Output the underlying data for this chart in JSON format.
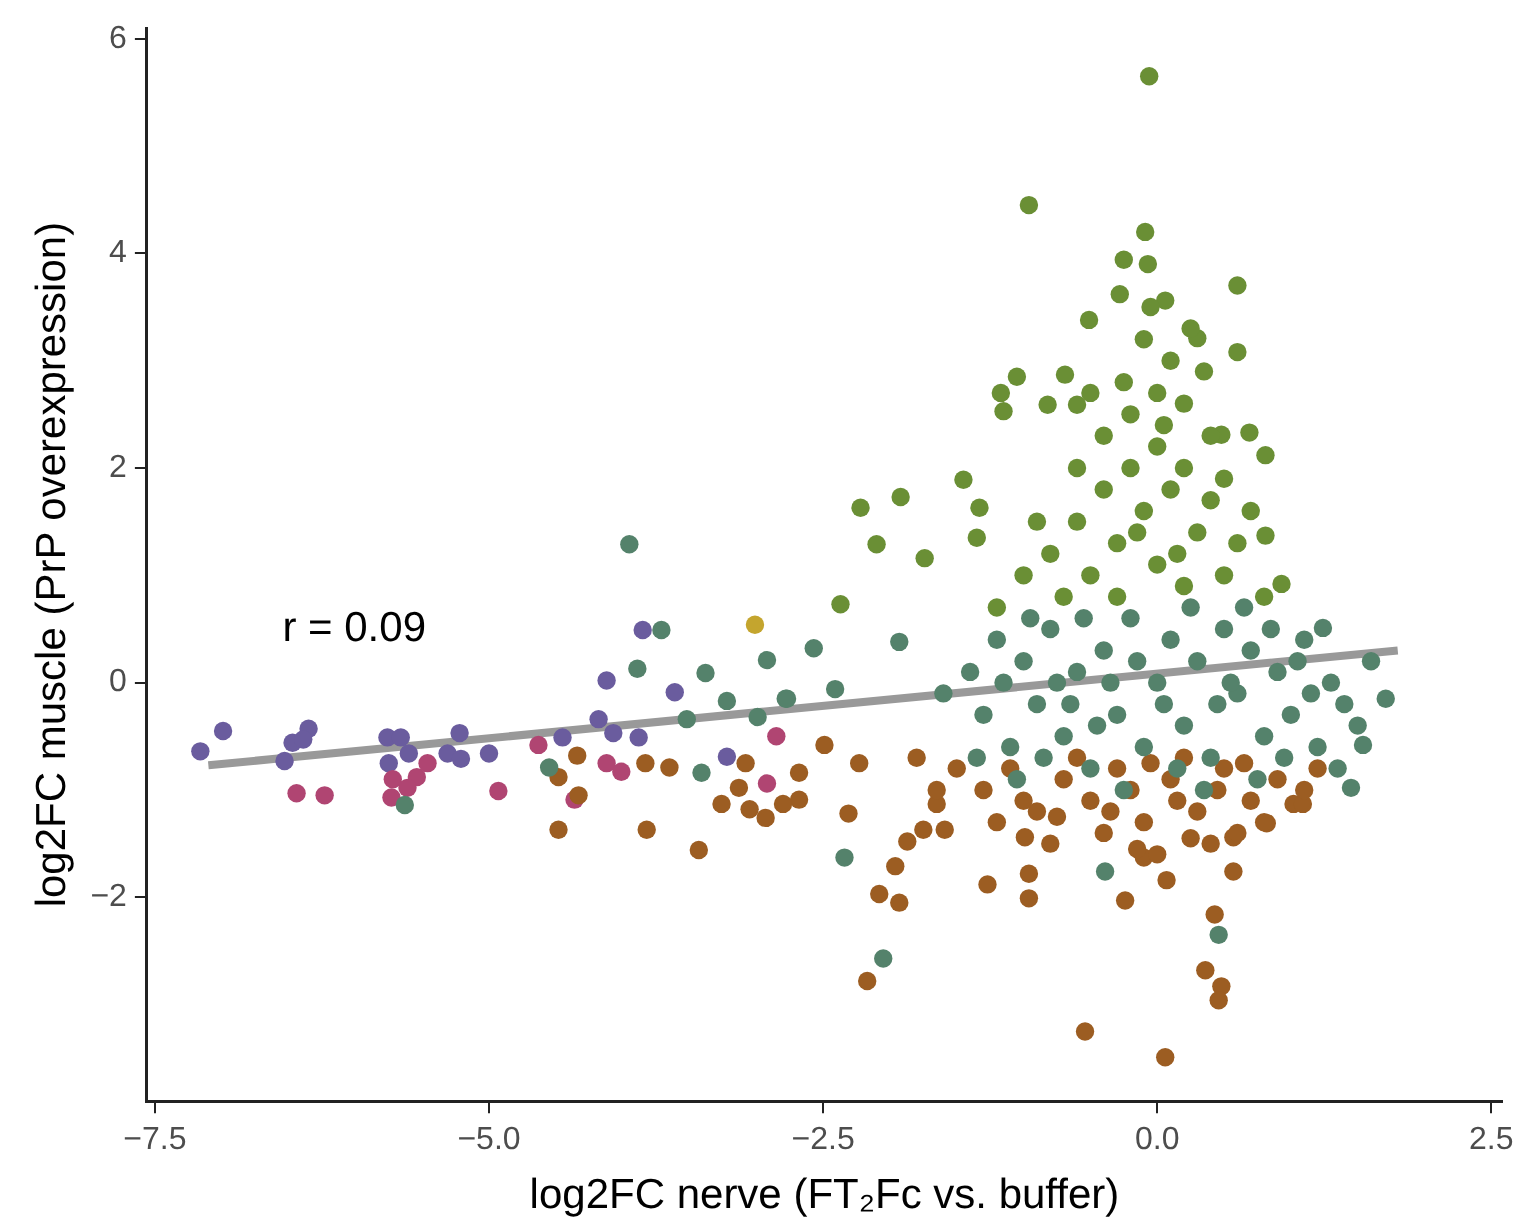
{
  "chart_data": {
    "type": "scatter",
    "xlabel": "log2FC nerve (FT₂Fc vs. buffer)",
    "ylabel": "log2FC muscle (PrP overexpression)",
    "annotations": [
      "r = 0.09"
    ],
    "xlim": [
      -7.56,
      2.58
    ],
    "ylim": [
      -3.9,
      6.1
    ],
    "xticks": [
      {
        "value": -7.5,
        "label": "−7.5"
      },
      {
        "value": -5,
        "label": "−5.0"
      },
      {
        "value": -2.5,
        "label": "−2.5"
      },
      {
        "value": 0,
        "label": "0.0"
      },
      {
        "value": 2.5,
        "label": "2.5"
      }
    ],
    "yticks": [
      {
        "value": -2,
        "label": "−2"
      },
      0,
      2,
      4,
      6
    ],
    "grid": false,
    "legend": false,
    "marker": "circle",
    "series": [
      {
        "type": "line",
        "color": "#999999",
        "x": [
          -7.1,
          1.8
        ],
        "values": [
          -0.77,
          0.3
        ],
        "marker": "none",
        "line_style": "solid"
      },
      {
        "color": "#6a8f35",
        "x": [
          -0.06,
          -0.96,
          -0.09,
          -0.07,
          -0.25,
          0.6,
          -0.28,
          0.06,
          -0.51,
          0.3,
          0.6,
          -1.05,
          -0.69,
          -1.17,
          -1.15,
          -0.82,
          -0.6,
          -1.45,
          -1.92,
          -2.22,
          -2.1,
          -1.74,
          -2.37,
          0.69,
          0.81,
          0.81,
          0.93,
          0.48,
          -1.33,
          -1.35,
          -0.8,
          -0.6,
          -0.4,
          -0.2,
          0,
          0.2,
          0.4,
          0.6,
          -0.5,
          -0.3,
          -0.1,
          0.1,
          0.3,
          0.5,
          -0.7,
          -0.2,
          0,
          0.1,
          -0.1,
          0.2,
          -0.4,
          0.4,
          -0.6,
          0.5,
          -1,
          -0.9,
          0.7,
          -0.3,
          0.2,
          0,
          -0.15,
          0.15,
          -1.2,
          0.8,
          -0.5,
          0.35,
          -0.05,
          0.05,
          -0.25,
          0.25
        ],
        "values": [
          5.65,
          4.45,
          4.2,
          3.9,
          3.94,
          3.7,
          3.62,
          3.56,
          3.38,
          3.21,
          3.08,
          2.85,
          2.87,
          2.7,
          2.53,
          2.59,
          2.59,
          1.89,
          1.73,
          1.63,
          1.29,
          1.16,
          0.73,
          2.33,
          2.12,
          1.37,
          0.92,
          2.31,
          1.63,
          1.35,
          1.2,
          1.5,
          1.8,
          2,
          2.2,
          2,
          1.7,
          1.3,
          1,
          1.3,
          1.6,
          1.8,
          1.4,
          1,
          0.8,
          2.5,
          2.7,
          3,
          3.2,
          2.6,
          2.3,
          2.3,
          2,
          1.9,
          1,
          1.5,
          1.6,
          0.8,
          0.9,
          1.1,
          1.4,
          1.2,
          0.7,
          0.8,
          2.7,
          2.9,
          3.5,
          2.4,
          2.8,
          3.3
        ]
      },
      {
        "color": "#54826b",
        "x": [
          -3.95,
          -3.71,
          -3.89,
          -3.38,
          -3.22,
          -4.55,
          -5.63,
          -3.41,
          -2.92,
          -2.78,
          -3.52,
          -2.99,
          -2.34,
          -2.05,
          1.71,
          1.54,
          1.45,
          0.46,
          -0.39,
          -2.57,
          -1.93,
          -2.77,
          -2.41,
          1.24,
          -1.4,
          -1.3,
          -1.2,
          -1.1,
          -1,
          -0.9,
          -0.8,
          -0.7,
          -0.6,
          -0.5,
          -0.4,
          -0.3,
          -0.2,
          -0.1,
          0,
          0.1,
          0.2,
          0.3,
          0.4,
          0.5,
          0.6,
          0.7,
          0.8,
          0.9,
          1,
          1.1,
          1.2,
          1.3,
          1.4,
          -1.35,
          -1.05,
          -0.75,
          -0.45,
          -0.15,
          0.15,
          0.45,
          0.75,
          1.05,
          1.35,
          -0.95,
          -0.55,
          0.25,
          0.65,
          -0.25,
          0.35,
          0.05,
          -0.65,
          0.85,
          1.15,
          -1.15,
          1.5,
          -1.6,
          1.6,
          -0.35,
          0.55,
          -0.85,
          0.95
        ],
        "values": [
          1.29,
          0.49,
          0.13,
          0.09,
          -0.17,
          -0.79,
          -1.14,
          -0.84,
          0.21,
          -0.15,
          -0.34,
          -0.32,
          -1.63,
          -2.57,
          -0.15,
          -0.58,
          -0.98,
          -2.35,
          -1.76,
          0.32,
          0.38,
          -0.15,
          -0.06,
          0.51,
          0.1,
          -0.3,
          0.4,
          -0.6,
          0.2,
          -0.2,
          0.5,
          -0.5,
          0.1,
          -0.8,
          0.3,
          -0.3,
          0.6,
          -0.6,
          0,
          0.4,
          -0.4,
          0.2,
          -0.7,
          0.5,
          -0.1,
          0.3,
          -0.5,
          0.1,
          -0.3,
          0.4,
          -0.6,
          0,
          -0.2,
          -0.7,
          -0.9,
          0,
          -0.4,
          0.2,
          -0.8,
          -0.2,
          -0.9,
          0.2,
          -0.8,
          0.6,
          0.6,
          0.7,
          0.7,
          -1,
          -1,
          -0.2,
          -0.2,
          0.5,
          -0.1,
          0,
          -0.4,
          -0.1,
          0.2,
          0,
          0,
          -0.7,
          -0.7
        ]
      },
      {
        "color": "#9c5d22",
        "x": [
          -2.49,
          -2.23,
          -2.68,
          -2.31,
          -1.87,
          -1.96,
          -2.08,
          -1.93,
          -2.17,
          -1.75,
          -1.59,
          -1.27,
          -0.96,
          -0.96,
          -0.99,
          -0.24,
          -0.54,
          0.06,
          0.43,
          0.36,
          0.48,
          0.46,
          0.57,
          0.07,
          -0.1,
          0.57,
          1.02,
          1.09,
          0.82,
          -1.65,
          -4.48,
          -3.82,
          -3.43,
          -4.34,
          -4.48,
          -4.33,
          -3.83,
          -3.65,
          -3.26,
          -3.13,
          -3.05,
          -2.93,
          -3.08,
          -2.8,
          -2.68,
          -1.5,
          -1.3,
          -1.1,
          -0.9,
          -0.7,
          -0.5,
          -0.3,
          -0.1,
          0.1,
          0.3,
          0.5,
          0.7,
          0.9,
          1.1,
          -1.2,
          -0.8,
          -0.4,
          0,
          0.4,
          0.8,
          -0.6,
          -0.2,
          0.2,
          0.6,
          -1,
          -0.35,
          0.15,
          0.45,
          -0.75,
          0.25,
          -0.05,
          1.2,
          -1.65,
          -1.8,
          0.65,
          -0.15
        ],
        "values": [
          -0.58,
          -0.75,
          -1.09,
          -1.22,
          -1.48,
          -1.71,
          -1.97,
          -2.05,
          -2.78,
          -1.37,
          -1.37,
          -1.88,
          -1.78,
          -2.01,
          -1.44,
          -2.03,
          -3.25,
          -3.49,
          -2.16,
          -2.68,
          -2.83,
          -2.96,
          -1.76,
          -1.84,
          -1.63,
          -1.44,
          -1.13,
          -1.13,
          -1.31,
          -1.13,
          -1.37,
          -1.37,
          -1.56,
          -0.68,
          -0.88,
          -1.05,
          -0.75,
          -0.79,
          -1.13,
          -0.98,
          -1.18,
          -1.26,
          -0.75,
          -1.13,
          -0.84,
          -0.8,
          -1,
          -0.8,
          -1.2,
          -0.9,
          -1.1,
          -0.8,
          -1.3,
          -0.9,
          -1.2,
          -0.8,
          -1.1,
          -0.9,
          -1,
          -1.3,
          -1.5,
          -1.4,
          -1.6,
          -1.5,
          -1.3,
          -0.7,
          -1,
          -0.7,
          -1.4,
          -1.1,
          -1.2,
          -1.1,
          -1,
          -1.25,
          -1.45,
          -0.75,
          -0.8,
          -1,
          -0.7,
          -0.75,
          -1.55
        ]
      },
      {
        "color": "#b04572",
        "x": [
          -6.44,
          -6.23,
          -5.72,
          -5.73,
          -5.54,
          -5.46,
          -5.61,
          -4.93,
          -4.63,
          -4.36,
          -4.12,
          -4.01,
          -2.92,
          -2.85
        ],
        "values": [
          -1.03,
          -1.05,
          -0.9,
          -1.07,
          -0.88,
          -0.75,
          -0.98,
          -1.01,
          -0.58,
          -1.09,
          -0.75,
          -0.83,
          -0.94,
          -0.5
        ]
      },
      {
        "color": "#6a5c9e",
        "x": [
          -7.16,
          -6.99,
          -6.53,
          -6.47,
          -6.35,
          -6.39,
          -5.76,
          -5.66,
          -5.75,
          -5.6,
          -5.31,
          -5.22,
          -5.21,
          -5,
          -4.45,
          -4.18,
          -4.07,
          -3.88,
          -3.85,
          -4.12,
          -3.61,
          -3.22
        ],
        "values": [
          -0.64,
          -0.45,
          -0.73,
          -0.56,
          -0.43,
          -0.53,
          -0.51,
          -0.51,
          -0.75,
          -0.66,
          -0.66,
          -0.47,
          -0.71,
          -0.66,
          -0.51,
          -0.34,
          -0.47,
          -0.51,
          0.49,
          0.02,
          -0.09,
          -0.69
        ]
      },
      {
        "color": "#c4a52e",
        "x": [
          -3.01
        ],
        "values": [
          0.54
        ]
      }
    ]
  }
}
